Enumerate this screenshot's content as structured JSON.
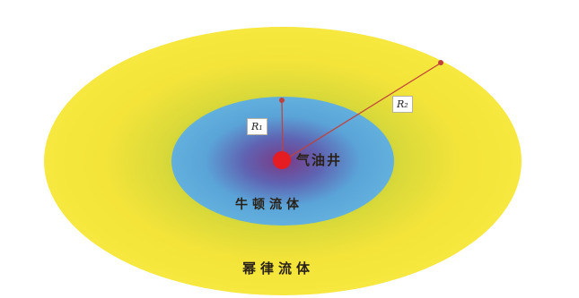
{
  "diagram": {
    "well_label": "气油井",
    "inner_region_label": "牛顿流体",
    "outer_region_label": "幂律流体",
    "r1_label": "R₁",
    "r2_label": "R₂"
  },
  "colors": {
    "outer_zone": "#f4e43a",
    "inner_zone": "#5ea8d8",
    "core_gradient": "#6a4a9a",
    "well_dot": "#e51c22",
    "arrow": "#c0413a"
  }
}
